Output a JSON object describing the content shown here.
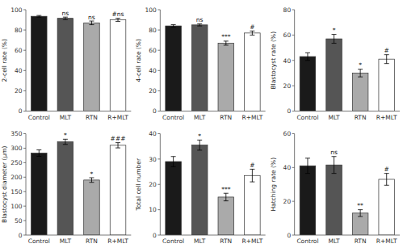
{
  "chart_data": [
    {
      "type": "bar",
      "ylabel": "2-cell rate (%)",
      "categories": [
        "Control",
        "MLT",
        "RTN",
        "R+MLT"
      ],
      "values": [
        93.5,
        91.5,
        87.0,
        90.0
      ],
      "errors": [
        0.8,
        1.2,
        1.8,
        1.5
      ],
      "colors": [
        "#1a1a1a",
        "#555555",
        "#aaaaaa",
        "#ffffff"
      ],
      "ylim": [
        0,
        100
      ],
      "yticks": [
        0,
        20,
        40,
        60,
        80,
        100
      ],
      "grid": false,
      "annotations": [
        {
          "text": "ns",
          "category": "MLT"
        },
        {
          "text": "ns",
          "category": "RTN"
        },
        {
          "text": "#ns",
          "category": "R+MLT"
        }
      ]
    },
    {
      "type": "bar",
      "ylabel": "4-cell rate (%)",
      "categories": [
        "Control",
        "MLT",
        "RTN",
        "R+MLT"
      ],
      "values": [
        84.0,
        85.0,
        67.0,
        77.0
      ],
      "errors": [
        1.2,
        1.0,
        2.0,
        2.0
      ],
      "colors": [
        "#1a1a1a",
        "#555555",
        "#aaaaaa",
        "#ffffff"
      ],
      "ylim": [
        0,
        100
      ],
      "yticks": [
        0,
        20,
        40,
        60,
        80,
        100
      ],
      "grid": false,
      "annotations": [
        {
          "text": "ns",
          "category": "MLT"
        },
        {
          "text": "***",
          "category": "RTN"
        },
        {
          "text": "#",
          "category": "R+MLT"
        }
      ]
    },
    {
      "type": "bar",
      "ylabel": "Blastocyst rate (%)",
      "categories": [
        "Control",
        "MLT",
        "RTN",
        "R+MLT"
      ],
      "values": [
        43.0,
        57.0,
        30.0,
        41.0
      ],
      "errors": [
        3.0,
        3.5,
        3.0,
        3.5
      ],
      "colors": [
        "#1a1a1a",
        "#555555",
        "#aaaaaa",
        "#ffffff"
      ],
      "ylim": [
        0,
        80
      ],
      "yticks": [
        0,
        20,
        40,
        60,
        80
      ],
      "grid": false,
      "annotations": [
        {
          "text": "*",
          "category": "MLT"
        },
        {
          "text": "*",
          "category": "RTN"
        },
        {
          "text": "#",
          "category": "R+MLT"
        }
      ]
    },
    {
      "type": "bar",
      "ylabel": "Blastocyst diameter (μm)",
      "categories": [
        "Control",
        "MLT",
        "RTN",
        "R+MLT"
      ],
      "values": [
        283,
        322,
        190,
        310
      ],
      "errors": [
        11,
        9,
        8,
        9
      ],
      "colors": [
        "#1a1a1a",
        "#555555",
        "#aaaaaa",
        "#ffffff"
      ],
      "ylim": [
        0,
        350
      ],
      "yticks": [
        0,
        50,
        100,
        150,
        200,
        250,
        300,
        350
      ],
      "grid": false,
      "annotations": [
        {
          "text": "*",
          "category": "MLT"
        },
        {
          "text": "*",
          "category": "RTN"
        },
        {
          "text": "###",
          "category": "R+MLT"
        }
      ]
    },
    {
      "type": "bar",
      "ylabel": "Total cell number",
      "categories": [
        "Control",
        "MLT",
        "RTN",
        "R+MLT"
      ],
      "values": [
        29.0,
        35.5,
        15.0,
        23.5
      ],
      "errors": [
        2.0,
        2.0,
        1.5,
        2.5
      ],
      "colors": [
        "#1a1a1a",
        "#555555",
        "#aaaaaa",
        "#ffffff"
      ],
      "ylim": [
        0,
        40
      ],
      "yticks": [
        0,
        10,
        20,
        30,
        40
      ],
      "grid": false,
      "annotations": [
        {
          "text": "*",
          "category": "MLT"
        },
        {
          "text": "***",
          "category": "RTN"
        },
        {
          "text": "#",
          "category": "R+MLT"
        }
      ]
    },
    {
      "type": "bar",
      "ylabel": "Hatching rate (%)",
      "categories": [
        "Control",
        "MLT",
        "RTN",
        "R+MLT"
      ],
      "values": [
        41.0,
        41.5,
        13.0,
        33.0
      ],
      "errors": [
        4.5,
        5.0,
        2.0,
        3.5
      ],
      "colors": [
        "#1a1a1a",
        "#555555",
        "#aaaaaa",
        "#ffffff"
      ],
      "ylim": [
        0,
        60
      ],
      "yticks": [
        0,
        20,
        40,
        60
      ],
      "grid": false,
      "annotations": [
        {
          "text": "ns",
          "category": "MLT"
        },
        {
          "text": "**",
          "category": "RTN"
        },
        {
          "text": "#",
          "category": "R+MLT"
        }
      ]
    }
  ]
}
